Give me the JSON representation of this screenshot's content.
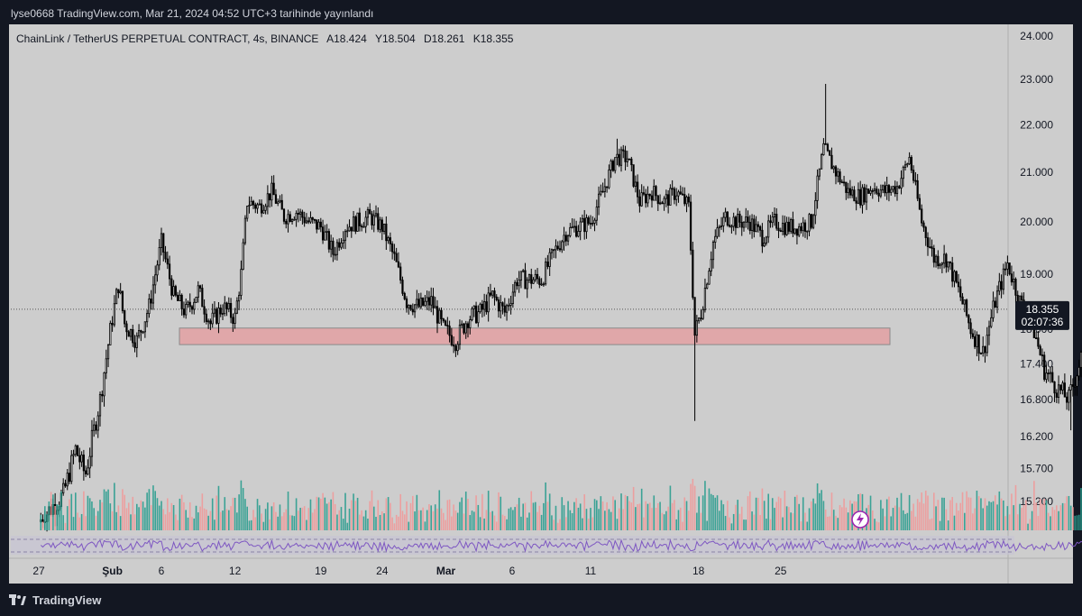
{
  "header": {
    "published": "lyse0668 TradingView.com, Mar 21, 2024 04:52 UTC+3 tarihinde yayınlandı"
  },
  "symbol": {
    "name": "ChainLink / TetherUS PERPETUAL CONTRACT, 4s, BINANCE",
    "open": "A18.424",
    "high": "Y18.504",
    "low": "D18.261",
    "close": "K18.355"
  },
  "price_tag": {
    "value": "18.355",
    "countdown": "02:07:36"
  },
  "colors": {
    "background": "#cdcdcd",
    "candle": "#000000",
    "zone_fill": "#e0a7a9",
    "zone_border": "#8a8a8a",
    "volume_up": "#2a9d8f",
    "volume_down": "#ef9a9a",
    "rsi_line": "#7e57c2",
    "frame": "#131722",
    "lightning": "#9c27b0"
  },
  "footer": {
    "brand": "TradingView"
  },
  "icons": {
    "logo": "tradingview-logo-icon",
    "alert": "lightning-icon"
  },
  "chart_data": {
    "type": "candlestick",
    "title": "ChainLink / TetherUS PERPETUAL CONTRACT, 4s, BINANCE",
    "y_axis": {
      "ticks": [
        "24.000",
        "23.000",
        "22.000",
        "21.000",
        "20.000",
        "19.000",
        "18.000",
        "17.400",
        "16.800",
        "16.200",
        "15.700",
        "15.200"
      ],
      "scale": "log",
      "range": [
        14.8,
        24.2
      ]
    },
    "x_axis": {
      "ticks": [
        "27",
        "Şub",
        "6",
        "12",
        "19",
        "24",
        "Mar",
        "6",
        "11",
        "18",
        "25"
      ]
    },
    "last_price": 18.355,
    "support_zone": {
      "low": 17.73,
      "high": 18.02,
      "from": "Feb 5",
      "to": "Mar 22"
    },
    "path": [
      {
        "d": 0,
        "p": 14.9
      },
      {
        "d": 2,
        "p": 15.3
      },
      {
        "d": 3,
        "p": 16.0
      },
      {
        "d": 3.8,
        "p": 15.6
      },
      {
        "d": 5,
        "p": 16.8
      },
      {
        "d": 6,
        "p": 18.2
      },
      {
        "d": 6.5,
        "p": 18.8
      },
      {
        "d": 7,
        "p": 18.1
      },
      {
        "d": 8,
        "p": 17.8
      },
      {
        "d": 9,
        "p": 18.4
      },
      {
        "d": 10,
        "p": 19.6
      },
      {
        "d": 11,
        "p": 18.6
      },
      {
        "d": 12,
        "p": 18.3
      },
      {
        "d": 13,
        "p": 18.7
      },
      {
        "d": 14,
        "p": 18.1
      },
      {
        "d": 15,
        "p": 18.4
      },
      {
        "d": 16,
        "p": 18.2
      },
      {
        "d": 16.5,
        "p": 19.0
      },
      {
        "d": 17,
        "p": 20.4
      },
      {
        "d": 18,
        "p": 20.3
      },
      {
        "d": 19,
        "p": 20.6
      },
      {
        "d": 20,
        "p": 20.1
      },
      {
        "d": 21,
        "p": 20.2
      },
      {
        "d": 22,
        "p": 20.0
      },
      {
        "d": 23,
        "p": 19.9
      },
      {
        "d": 24,
        "p": 19.4
      },
      {
        "d": 25,
        "p": 19.9
      },
      {
        "d": 26,
        "p": 20.0
      },
      {
        "d": 27,
        "p": 20.1
      },
      {
        "d": 28,
        "p": 19.9
      },
      {
        "d": 29,
        "p": 19.3
      },
      {
        "d": 30,
        "p": 18.5
      },
      {
        "d": 31,
        "p": 18.4
      },
      {
        "d": 32,
        "p": 18.5
      },
      {
        "d": 33,
        "p": 18.0
      },
      {
        "d": 34,
        "p": 17.8
      },
      {
        "d": 35,
        "p": 18.2
      },
      {
        "d": 36,
        "p": 18.3
      },
      {
        "d": 37,
        "p": 18.6
      },
      {
        "d": 38,
        "p": 18.3
      },
      {
        "d": 39,
        "p": 18.9
      },
      {
        "d": 40,
        "p": 18.9
      },
      {
        "d": 41,
        "p": 18.9
      },
      {
        "d": 42,
        "p": 19.4
      },
      {
        "d": 43,
        "p": 19.8
      },
      {
        "d": 44,
        "p": 19.9
      },
      {
        "d": 45,
        "p": 20.0
      },
      {
        "d": 46,
        "p": 20.6
      },
      {
        "d": 47,
        "p": 21.3
      },
      {
        "d": 48,
        "p": 21.3
      },
      {
        "d": 49,
        "p": 20.4
      },
      {
        "d": 50,
        "p": 20.6
      },
      {
        "d": 51,
        "p": 20.4
      },
      {
        "d": 52,
        "p": 20.6
      },
      {
        "d": 53,
        "p": 20.3
      },
      {
        "d": 53.5,
        "p": 17.9
      },
      {
        "d": 54,
        "p": 18.3
      },
      {
        "d": 55,
        "p": 19.6
      },
      {
        "d": 56,
        "p": 20.1
      },
      {
        "d": 57,
        "p": 20.0
      },
      {
        "d": 58,
        "p": 20.0
      },
      {
        "d": 59,
        "p": 19.7
      },
      {
        "d": 60,
        "p": 20.0
      },
      {
        "d": 61,
        "p": 19.9
      },
      {
        "d": 62,
        "p": 19.9
      },
      {
        "d": 63,
        "p": 20.0
      },
      {
        "d": 64,
        "p": 21.5
      },
      {
        "d": 65,
        "p": 21.0
      },
      {
        "d": 66,
        "p": 20.6
      },
      {
        "d": 67,
        "p": 20.5
      },
      {
        "d": 68,
        "p": 20.7
      },
      {
        "d": 69,
        "p": 20.6
      },
      {
        "d": 70,
        "p": 20.7
      },
      {
        "d": 71,
        "p": 21.3
      },
      {
        "d": 72,
        "p": 20.0
      },
      {
        "d": 73,
        "p": 19.3
      },
      {
        "d": 74,
        "p": 19.3
      },
      {
        "d": 75,
        "p": 18.7
      },
      {
        "d": 76,
        "p": 18.0
      },
      {
        "d": 77,
        "p": 17.6
      },
      {
        "d": 78,
        "p": 18.5
      },
      {
        "d": 79,
        "p": 19.2
      },
      {
        "d": 80,
        "p": 18.5
      },
      {
        "d": 81,
        "p": 18.1
      },
      {
        "d": 82,
        "p": 17.3
      },
      {
        "d": 83,
        "p": 17.0
      },
      {
        "d": 84,
        "p": 16.8
      },
      {
        "d": 85,
        "p": 17.5
      },
      {
        "d": 86,
        "p": 18.2
      },
      {
        "d": 86.7,
        "p": 18.355
      }
    ]
  }
}
